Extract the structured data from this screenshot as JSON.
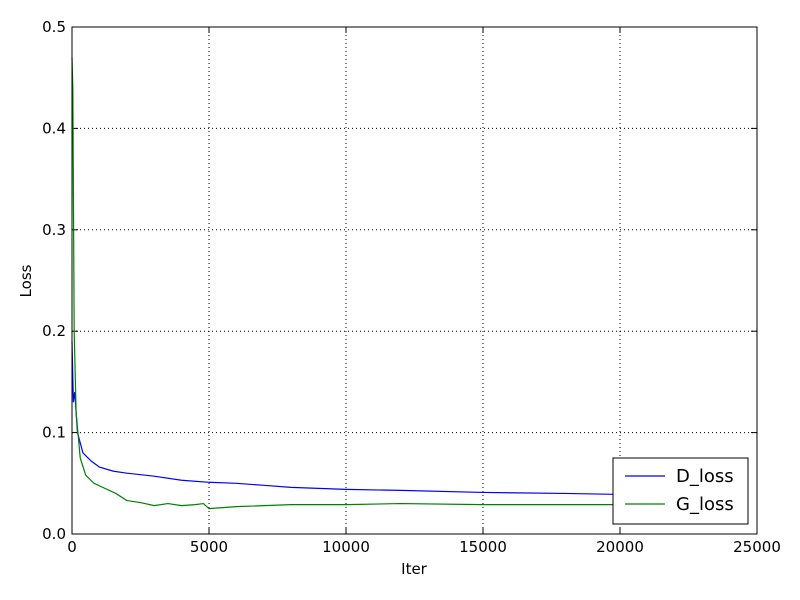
{
  "chart_data": {
    "type": "line",
    "x_label": "Iter",
    "y_label": "Loss",
    "xlim": [
      0,
      25000
    ],
    "ylim": [
      0,
      0.5
    ],
    "xticks": [
      0,
      5000,
      10000,
      15000,
      20000,
      25000
    ],
    "yticks": [
      {
        "value": 0,
        "label": "0.0"
      },
      0.1,
      0.2,
      0.3,
      0.4,
      0.5
    ],
    "grid": true,
    "legend": "lower-right",
    "series": [
      {
        "name": "D_loss",
        "color": "#0000ff",
        "x": [
          0,
          50,
          100,
          200,
          400,
          700,
          1000,
          1500,
          2000,
          3000,
          4000,
          5000,
          6000,
          7000,
          8000,
          10000,
          12000,
          15000,
          18000,
          20000
        ],
        "values": [
          0.19,
          0.13,
          0.14,
          0.1,
          0.08,
          0.072,
          0.066,
          0.062,
          0.06,
          0.057,
          0.053,
          0.051,
          0.05,
          0.048,
          0.046,
          0.044,
          0.043,
          0.041,
          0.04,
          0.039
        ]
      },
      {
        "name": "G_loss",
        "color": "#008000",
        "x": [
          0,
          30,
          80,
          150,
          300,
          500,
          800,
          1200,
          1600,
          2000,
          2500,
          3000,
          3500,
          4000,
          4500,
          4800,
          5000,
          6000,
          8000,
          10000,
          12000,
          15000,
          20000
        ],
        "values": [
          0.47,
          0.44,
          0.2,
          0.12,
          0.075,
          0.058,
          0.05,
          0.045,
          0.04,
          0.033,
          0.031,
          0.028,
          0.03,
          0.028,
          0.029,
          0.03,
          0.025,
          0.027,
          0.029,
          0.029,
          0.03,
          0.029,
          0.029
        ]
      }
    ]
  }
}
